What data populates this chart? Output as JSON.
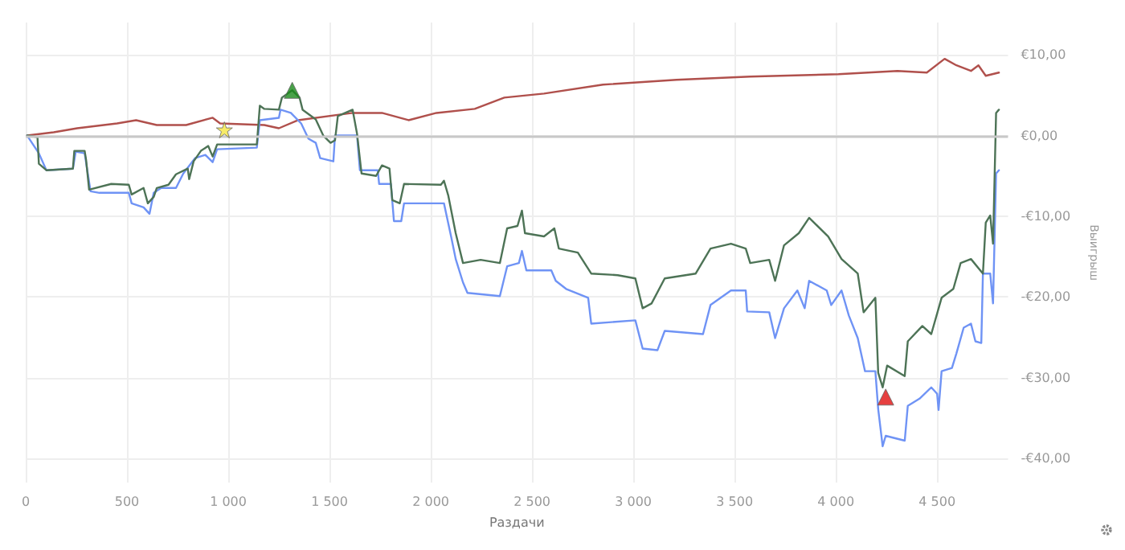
{
  "chart_data": {
    "type": "line",
    "xlabel": "Раздачи",
    "ylabel": "Выигрыш",
    "xlim": [
      0,
      4850
    ],
    "ylim": [
      -43,
      14
    ],
    "xticks": [
      0,
      500,
      {
        "value": 1000,
        "label": "1 000"
      },
      {
        "value": 1500,
        "label": "1 500"
      },
      {
        "value": 2000,
        "label": "2 000"
      },
      {
        "value": 2500,
        "label": "2 500"
      },
      {
        "value": 3000,
        "label": "3 000"
      },
      {
        "value": 3500,
        "label": "3 500"
      },
      {
        "value": 4000,
        "label": "4 000"
      },
      {
        "value": 4500,
        "label": "4 500"
      }
    ],
    "yticks": [
      {
        "value": -40,
        "label": "-€40,00"
      },
      {
        "value": -30,
        "label": "-€30,00"
      },
      {
        "value": -20,
        "label": "-€20,00"
      },
      {
        "value": -10,
        "label": "-€10,00"
      },
      {
        "value": 0,
        "label": "€0,00"
      },
      {
        "value": 10,
        "label": "€10,00"
      }
    ],
    "grid": true,
    "marker": "none",
    "ref_lines": [
      {
        "axis": "y",
        "value": 0,
        "color": "#c8c8c8"
      }
    ],
    "series": [
      {
        "color": "#b0504c",
        "x": [
          7,
          138,
          254,
          451,
          545,
          647,
          792,
          923,
          960,
          1178,
          1250,
          1345,
          1614,
          1759,
          1890,
          2028,
          2217,
          2363,
          2559,
          2850,
          3213,
          3577,
          4013,
          4304,
          4449,
          4537,
          4595,
          4667,
          4704,
          4740,
          4805
        ],
        "values": [
          0,
          0.4,
          0.9,
          1.5,
          1.9,
          1.3,
          1.3,
          2.2,
          1.5,
          1.3,
          0.9,
          1.9,
          2.8,
          2.8,
          1.9,
          2.8,
          3.3,
          4.7,
          5.2,
          6.3,
          6.9,
          7.3,
          7.6,
          8.0,
          7.8,
          9.5,
          8.7,
          8.0,
          8.7,
          7.4,
          7.8
        ]
      },
      {
        "color": "#6f93f5",
        "x": [
          7,
          65,
          102,
          233,
          247,
          291,
          320,
          364,
          509,
          523,
          582,
          611,
          632,
          669,
          742,
          778,
          836,
          887,
          923,
          945,
          1141,
          1156,
          1250,
          1258,
          1309,
          1360,
          1396,
          1432,
          1454,
          1519,
          1527,
          1636,
          1650,
          1738,
          1745,
          1803,
          1818,
          1854,
          1868,
          2065,
          2101,
          2123,
          2159,
          2181,
          2341,
          2377,
          2435,
          2450,
          2472,
          2595,
          2617,
          2668,
          2777,
          2792,
          3010,
          3046,
          3119,
          3155,
          3344,
          3381,
          3482,
          3555,
          3562,
          3671,
          3700,
          3744,
          3810,
          3846,
          3868,
          3955,
          3977,
          4028,
          4064,
          4108,
          4144,
          4195,
          4209,
          4231,
          4246,
          4340,
          4355,
          4413,
          4471,
          4500,
          4507,
          4522,
          4573,
          4595,
          4631,
          4667,
          4689,
          4718,
          4726,
          4762,
          4776,
          4791,
          4805
        ],
        "values": [
          0,
          -2.2,
          -4.3,
          -4.1,
          -2.0,
          -2.2,
          -6.9,
          -7.1,
          -7.1,
          -8.4,
          -8.9,
          -9.7,
          -7.1,
          -6.5,
          -6.5,
          -4.7,
          -2.8,
          -2.4,
          -3.3,
          -1.7,
          -1.5,
          1.9,
          2.2,
          3.2,
          2.8,
          1.5,
          -0.4,
          -0.9,
          -2.8,
          -3.2,
          0,
          0,
          -4.3,
          -4.3,
          -6.0,
          -6.0,
          -10.6,
          -10.6,
          -8.4,
          -8.4,
          -12.6,
          -15.3,
          -18.2,
          -19.5,
          -19.9,
          -16.2,
          -15.8,
          -14.3,
          -16.7,
          -16.7,
          -18.0,
          -19.0,
          -20.1,
          -23.3,
          -22.9,
          -26.4,
          -26.6,
          -24.2,
          -24.6,
          -21.0,
          -19.2,
          -19.2,
          -21.8,
          -21.9,
          -25.1,
          -21.4,
          -19.2,
          -21.4,
          -18.0,
          -19.2,
          -21.0,
          -19.2,
          -22.3,
          -25.1,
          -29.2,
          -29.2,
          -33.9,
          -38.5,
          -37.2,
          -37.8,
          -33.5,
          -32.6,
          -31.2,
          -32.0,
          -34.0,
          -29.2,
          -28.8,
          -27.0,
          -23.8,
          -23.3,
          -25.5,
          -25.7,
          -17.1,
          -17.1,
          -20.8,
          -4.7,
          -4.3
        ]
      },
      {
        "color": "#4d7356",
        "x": [
          7,
          58,
          65,
          102,
          233,
          240,
          291,
          298,
          313,
          422,
          509,
          523,
          582,
          603,
          632,
          647,
          705,
          742,
          800,
          807,
          829,
          865,
          901,
          923,
          945,
          1141,
          1156,
          1178,
          1250,
          1265,
          1316,
          1352,
          1367,
          1432,
          1469,
          1505,
          1527,
          1541,
          1614,
          1636,
          1658,
          1730,
          1759,
          1796,
          1810,
          1847,
          1868,
          2050,
          2065,
          2086,
          2123,
          2159,
          2246,
          2341,
          2377,
          2428,
          2450,
          2465,
          2559,
          2610,
          2632,
          2726,
          2792,
          2923,
          3010,
          3046,
          3090,
          3155,
          3308,
          3381,
          3482,
          3555,
          3577,
          3671,
          3700,
          3744,
          3817,
          3868,
          3962,
          4028,
          4108,
          4137,
          4195,
          4209,
          4231,
          4253,
          4340,
          4355,
          4427,
          4471,
          4522,
          4580,
          4616,
          4667,
          4726,
          4740,
          4762,
          4776,
          4791,
          4805
        ],
        "values": [
          0,
          -0.2,
          -3.5,
          -4.3,
          -4.1,
          -1.9,
          -1.9,
          -3.0,
          -6.7,
          -6.0,
          -6.1,
          -7.3,
          -6.5,
          -8.4,
          -7.6,
          -6.5,
          -6.1,
          -4.8,
          -4.1,
          -5.4,
          -3.2,
          -1.9,
          -1.3,
          -2.6,
          -1.1,
          -1.1,
          3.7,
          3.3,
          3.2,
          4.7,
          5.6,
          4.7,
          3.2,
          2.0,
          0,
          -0.9,
          -0.6,
          2.4,
          3.2,
          0.2,
          -4.7,
          -5.0,
          -3.7,
          -4.1,
          -8.0,
          -8.4,
          -6.0,
          -6.1,
          -5.6,
          -7.4,
          -12.1,
          -15.8,
          -15.4,
          -15.8,
          -11.5,
          -11.2,
          -9.3,
          -12.1,
          -12.5,
          -11.5,
          -14.0,
          -14.5,
          -17.1,
          -17.3,
          -17.7,
          -21.4,
          -20.8,
          -17.7,
          -17.1,
          -14.0,
          -13.4,
          -14.0,
          -15.8,
          -15.4,
          -18.0,
          -13.6,
          -12.1,
          -10.2,
          -12.5,
          -15.3,
          -17.1,
          -21.9,
          -20.1,
          -29.4,
          -31.2,
          -28.5,
          -29.8,
          -25.5,
          -23.6,
          -24.6,
          -20.1,
          -19.0,
          -15.8,
          -15.3,
          -17.1,
          -10.8,
          -9.9,
          -13.4,
          2.8,
          3.2
        ]
      },
      {
        "type": "scatter",
        "marker": "star",
        "color": "#f5e642",
        "x": [
          981
        ],
        "values": [
          0.7
        ]
      },
      {
        "type": "scatter",
        "marker": "triangle",
        "color": "#1a8a1a",
        "x": [
          1316
        ],
        "values": [
          5.6
        ]
      },
      {
        "type": "scatter",
        "marker": "triangle",
        "color": "#e01010",
        "x": [
          4246
        ],
        "values": [
          -32.4
        ]
      }
    ]
  }
}
